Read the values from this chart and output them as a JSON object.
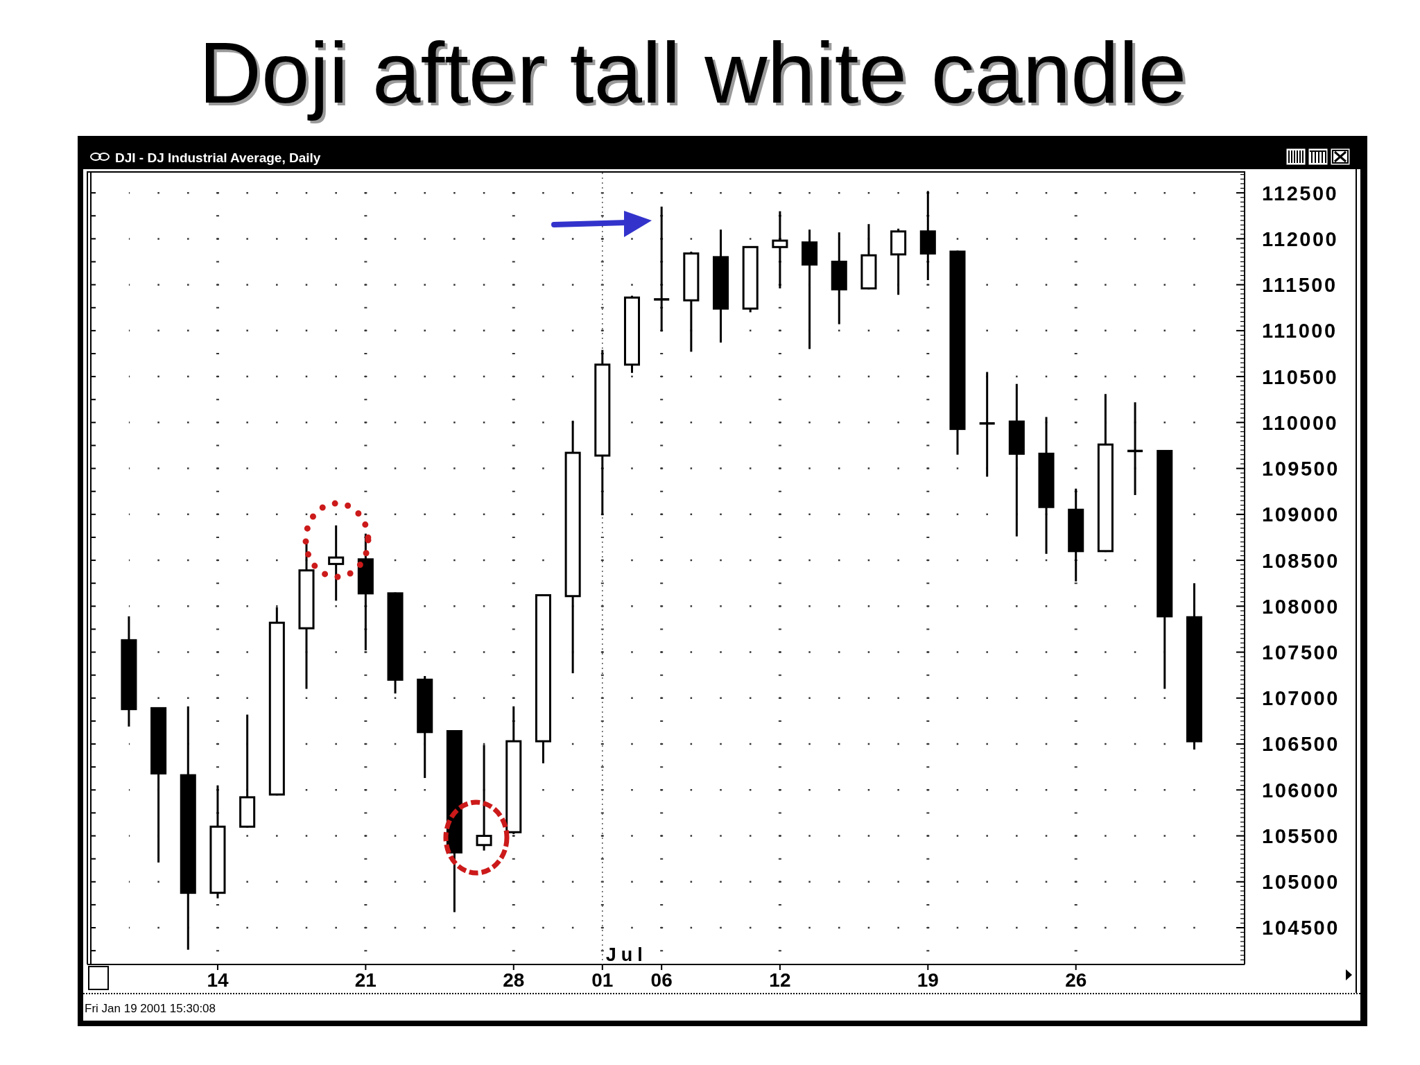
{
  "chart_data": {
    "type": "candlestick",
    "title": "Doji after tall white candle",
    "subtitle": "DJI - DJ Industrial Average, Daily",
    "categories": [
      null,
      null,
      null,
      "14",
      null,
      null,
      null,
      null,
      "21",
      null,
      null,
      null,
      null,
      "28",
      null,
      null,
      "01",
      null,
      "06",
      null,
      null,
      null,
      "12",
      null,
      null,
      null,
      null,
      "19",
      null,
      null,
      null,
      null,
      "26",
      null,
      null,
      null,
      null
    ],
    "ohlc": [
      [
        107630,
        107890,
        106690,
        106880
      ],
      [
        106890,
        106900,
        105210,
        106180
      ],
      [
        106160,
        106910,
        104260,
        104880
      ],
      [
        104880,
        106050,
        104820,
        105600
      ],
      [
        105600,
        106820,
        105590,
        105920
      ],
      [
        105950,
        107990,
        105940,
        107820
      ],
      [
        107760,
        108690,
        107100,
        108390
      ],
      [
        108460,
        108880,
        108060,
        108530
      ],
      [
        108510,
        108790,
        107520,
        108140
      ],
      [
        108140,
        108150,
        107050,
        107200
      ],
      [
        107200,
        107240,
        106130,
        106630
      ],
      [
        106640,
        106650,
        104670,
        105320
      ],
      [
        105400,
        106490,
        105340,
        105500
      ],
      [
        105540,
        106910,
        105520,
        106530
      ],
      [
        106530,
        108130,
        106290,
        108120
      ],
      [
        108110,
        110020,
        107270,
        109670
      ],
      [
        109640,
        110790,
        108990,
        110630
      ],
      [
        110630,
        111380,
        110540,
        111360
      ],
      [
        111340,
        112350,
        110990,
        111340
      ],
      [
        111330,
        111860,
        110770,
        111840
      ],
      [
        111800,
        112100,
        110870,
        111240
      ],
      [
        111240,
        111910,
        111200,
        111910
      ],
      [
        111910,
        112300,
        111460,
        111980
      ],
      [
        111960,
        112100,
        110800,
        111720
      ],
      [
        111750,
        112070,
        111070,
        111450
      ],
      [
        111460,
        112160,
        111450,
        111820
      ],
      [
        111830,
        112110,
        111390,
        112080
      ],
      [
        112080,
        112520,
        111550,
        111840
      ],
      [
        111860,
        111870,
        109650,
        109930
      ],
      [
        109990,
        110550,
        109410,
        109990
      ],
      [
        110010,
        110420,
        108760,
        109660
      ],
      [
        109660,
        110060,
        108570,
        109080
      ],
      [
        109050,
        109280,
        108270,
        108600
      ],
      [
        108600,
        110310,
        108590,
        109760
      ],
      [
        109690,
        110220,
        109210,
        109690
      ],
      [
        109690,
        109700,
        107100,
        107890
      ],
      [
        107880,
        108250,
        106440,
        106530
      ]
    ],
    "color": "#000000",
    "ylim": [
      104100,
      112720
    ],
    "yticks": [
      104500,
      105000,
      105500,
      106000,
      106500,
      107000,
      107500,
      108000,
      108500,
      109000,
      109500,
      110000,
      110500,
      111000,
      111500,
      112000,
      112500
    ],
    "grid": true,
    "ref_lines": [
      {
        "axis": "x",
        "value": "01",
        "label": "Jul",
        "line_style": "dotted"
      }
    ],
    "annotations": [
      "Fri Jan 19 2001 15:30:08"
    ]
  }
}
